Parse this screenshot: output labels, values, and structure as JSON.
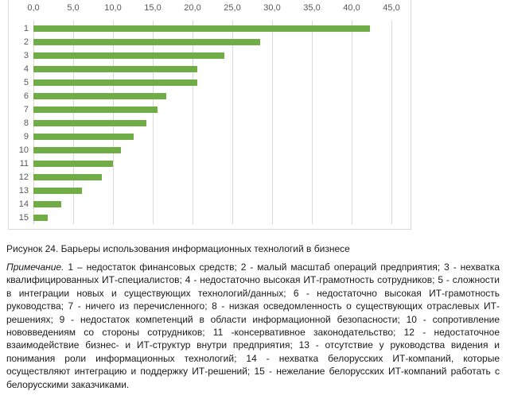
{
  "chart": {
    "bar_color": "#70ad47",
    "gridline_color": "#d9d9d9",
    "frame_border_color": "#d9d9d9",
    "tick_label_color": "#595959"
  },
  "chart_data": {
    "type": "bar",
    "orientation": "horizontal",
    "title": "",
    "xlabel": "",
    "ylabel": "",
    "categories": [
      "1",
      "2",
      "3",
      "4",
      "5",
      "6",
      "7",
      "8",
      "9",
      "10",
      "11",
      "12",
      "13",
      "14",
      "15"
    ],
    "values": [
      42.3,
      28.5,
      24.0,
      20.6,
      20.6,
      16.7,
      15.6,
      14.2,
      12.6,
      11.0,
      10.0,
      8.6,
      6.1,
      3.5,
      1.8
    ],
    "xlim": [
      0,
      45
    ],
    "x_tick_step": 5,
    "x_tick_labels": [
      "0,0",
      "5,0",
      "10,0",
      "15,0",
      "20,0",
      "25,0",
      "30,0",
      "35,0",
      "40,0",
      "45,0"
    ],
    "legend": "none",
    "grid": "vertical"
  },
  "caption": "Рисунок 24. Барьеры использования информационных технологий в бизнесе",
  "note": {
    "lead": "Примечание.",
    "body": "1 – недостаток финансовых средств; 2 - малый масштаб операций предприятия; 3 - нехватка квалифицированных ИТ-специалистов; 4 - недостаточно высокая ИТ-грамотность сотрудников; 5 - сложности в интеграции новых и существующих технологий/данных; 6 - недостаточно высокая ИТ-грамотность руководства; 7 - ничего из перечисленного; 8 - низкая осведомленность о существующих отраслевых ИТ-решениях; 9 - недостаток компетенций в области информационной безопасности; 10 - сопротивление нововведениям со стороны сотрудников; 11 -консервативное законодательство; 12 - недостаточное взаимодействие бизнес- и ИТ-структур внутри предприятия; 13 - отсутствие у руководства видения и понимания роли информационных технологий; 14 - нехватка белорусских ИТ-компаний, которые осуществляют интеграцию и поддержку ИТ-решений; 15 - нежелание белорусских ИТ-компаний работать с белорусскими заказчиками."
  }
}
